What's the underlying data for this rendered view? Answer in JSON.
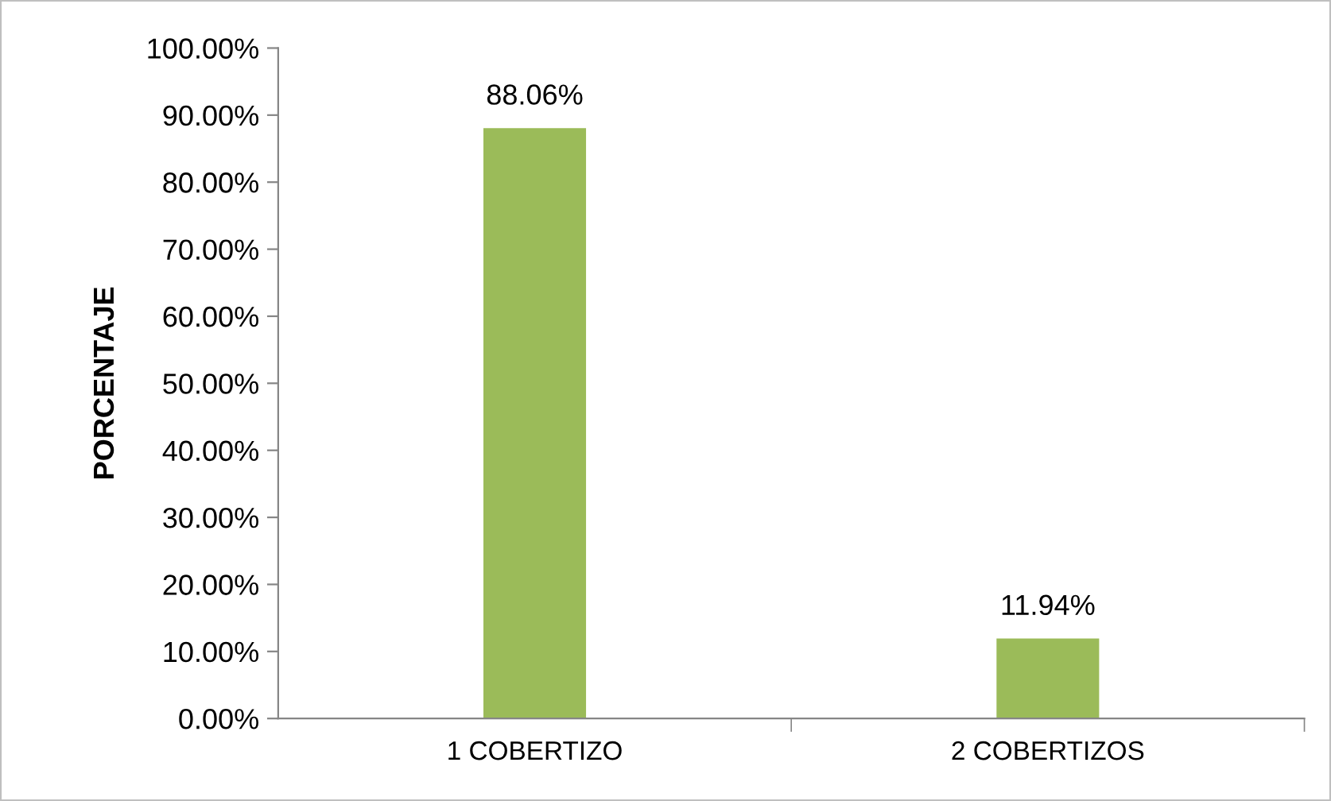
{
  "chart_data": {
    "type": "bar",
    "ylabel": "PORCENTAJE",
    "categories": [
      "1 COBERTIZO",
      "2 COBERTIZOS"
    ],
    "values": [
      88.06,
      11.94
    ],
    "value_labels": [
      "88.06%",
      "11.94%"
    ],
    "color": "#9bbb59",
    "ylim": [
      0,
      100
    ],
    "yticks": [
      {
        "value": 0,
        "label": "0.00%"
      },
      {
        "value": 10,
        "label": "10.00%"
      },
      {
        "value": 20,
        "label": "20.00%"
      },
      {
        "value": 30,
        "label": "30.00%"
      },
      {
        "value": 40,
        "label": "40.00%"
      },
      {
        "value": 50,
        "label": "50.00%"
      },
      {
        "value": 60,
        "label": "60.00%"
      },
      {
        "value": 70,
        "label": "70.00%"
      },
      {
        "value": 80,
        "label": "80.00%"
      },
      {
        "value": 90,
        "label": "90.00%"
      },
      {
        "value": 100,
        "label": "100.00%"
      }
    ],
    "grid": false
  }
}
